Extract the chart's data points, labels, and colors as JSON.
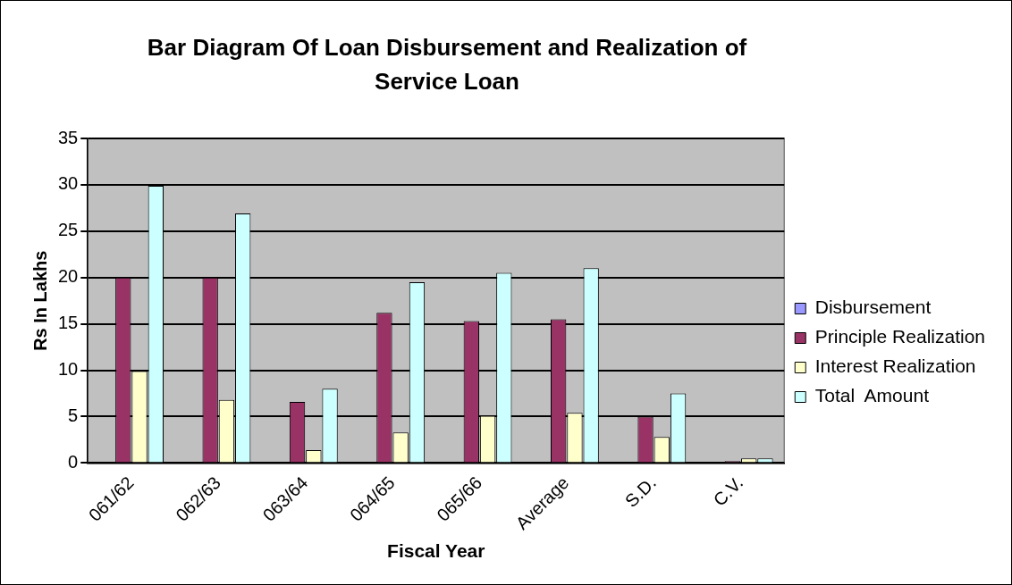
{
  "chart_data": {
    "type": "bar",
    "title": "Bar Diagram Of Loan Disbursement and Realization of Service Loan",
    "xlabel": "Fiscal Year",
    "ylabel": "Rs In Lakhs",
    "categories": [
      "061/62",
      "062/63",
      "063/64",
      "064/65",
      "065/66",
      "Average",
      "S.D.",
      "C.V."
    ],
    "series": [
      {
        "name": "Disbursement",
        "color": "#9999ff",
        "values": [
          0,
          0,
          0,
          0,
          0,
          0,
          0,
          0
        ]
      },
      {
        "name": "Principle Realization",
        "color": "#993366",
        "values": [
          20,
          20,
          6.6,
          16.2,
          15.3,
          15.5,
          5,
          0.2
        ]
      },
      {
        "name": "Interest Realization",
        "color": "#ffffcc",
        "values": [
          9.9,
          6.8,
          1.4,
          3.3,
          5.1,
          5.4,
          2.8,
          0.5
        ]
      },
      {
        "name": "Total  Amount",
        "color": "#ccffff",
        "values": [
          29.9,
          26.9,
          8,
          19.5,
          20.5,
          21,
          7.5,
          0.5
        ]
      }
    ],
    "ylim": [
      0,
      35
    ],
    "yticks": [
      0,
      5,
      10,
      15,
      20,
      25,
      30,
      35
    ],
    "grid": "y",
    "legend": "right"
  }
}
